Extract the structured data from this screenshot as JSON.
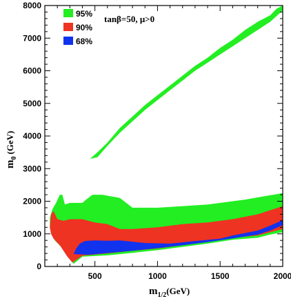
{
  "chart_data": {
    "type": "area",
    "title": "",
    "annotation": "tanβ=50, μ>0",
    "xlabel": {
      "main": "m",
      "sub": "1/2",
      "unit": "(GeV)"
    },
    "ylabel": {
      "main": "m",
      "sub": "0",
      "unit": "(GeV)"
    },
    "xlim": [
      100,
      2000
    ],
    "ylim": [
      0,
      8000
    ],
    "xticks": [
      500,
      1000,
      1500,
      2000
    ],
    "yticks": [
      0,
      1000,
      2000,
      3000,
      4000,
      5000,
      6000,
      7000,
      8000
    ],
    "legend": {
      "placement": "top-left",
      "entries": [
        {
          "label": "95%",
          "color": "#22ee22"
        },
        {
          "label": "90%",
          "color": "#ee3322"
        },
        {
          "label": "68%",
          "color": "#1133ee"
        }
      ]
    },
    "regions": [
      {
        "name": "95%",
        "color": "#22ee22",
        "polygons": [
          [
            [
              460,
              3300
            ],
            [
              520,
              3500
            ],
            [
              600,
              3800
            ],
            [
              700,
              4250
            ],
            [
              800,
              4600
            ],
            [
              900,
              4950
            ],
            [
              1000,
              5250
            ],
            [
              1100,
              5550
            ],
            [
              1200,
              5850
            ],
            [
              1300,
              6150
            ],
            [
              1400,
              6400
            ],
            [
              1500,
              6700
            ],
            [
              1600,
              6950
            ],
            [
              1700,
              7250
            ],
            [
              1800,
              7500
            ],
            [
              1900,
              7700
            ],
            [
              1950,
              7900
            ],
            [
              2000,
              8000
            ],
            [
              2000,
              7850
            ],
            [
              1900,
              7500
            ],
            [
              1800,
              7250
            ],
            [
              1700,
              7000
            ],
            [
              1600,
              6750
            ],
            [
              1500,
              6500
            ],
            [
              1400,
              6250
            ],
            [
              1300,
              6000
            ],
            [
              1200,
              5700
            ],
            [
              1100,
              5400
            ],
            [
              1000,
              5100
            ],
            [
              900,
              4800
            ],
            [
              800,
              4450
            ],
            [
              700,
              4100
            ],
            [
              600,
              3700
            ],
            [
              520,
              3350
            ]
          ],
          [
            [
              140,
              1500
            ],
            [
              160,
              1750
            ],
            [
              190,
              1950
            ],
            [
              220,
              2200
            ],
            [
              240,
              2200
            ],
            [
              260,
              1900
            ],
            [
              300,
              1950
            ],
            [
              400,
              1950
            ],
            [
              430,
              2050
            ],
            [
              480,
              2200
            ],
            [
              560,
              2200
            ],
            [
              700,
              2100
            ],
            [
              800,
              1800
            ],
            [
              1000,
              1800
            ],
            [
              1200,
              1850
            ],
            [
              1400,
              1900
            ],
            [
              1500,
              1950
            ],
            [
              1700,
              2050
            ],
            [
              1850,
              2150
            ],
            [
              2000,
              2250
            ],
            [
              2000,
              1050
            ],
            [
              1900,
              980
            ],
            [
              1800,
              880
            ],
            [
              1600,
              820
            ],
            [
              1400,
              700
            ],
            [
              1200,
              600
            ],
            [
              1000,
              500
            ],
            [
              800,
              420
            ],
            [
              600,
              340
            ],
            [
              400,
              300
            ],
            [
              330,
              80
            ],
            [
              300,
              250
            ],
            [
              230,
              600
            ],
            [
              180,
              800
            ],
            [
              150,
              1000
            ],
            [
              140,
              1200
            ]
          ]
        ]
      },
      {
        "name": "90%",
        "color": "#ee3322",
        "polygons": [
          [
            [
              140,
              1200
            ],
            [
              150,
              1600
            ],
            [
              170,
              1700
            ],
            [
              200,
              1450
            ],
            [
              250,
              1400
            ],
            [
              300,
              1450
            ],
            [
              400,
              1450
            ],
            [
              500,
              1350
            ],
            [
              600,
              1300
            ],
            [
              700,
              1150
            ],
            [
              800,
              1150
            ],
            [
              1000,
              1200
            ],
            [
              1200,
              1300
            ],
            [
              1400,
              1350
            ],
            [
              1600,
              1450
            ],
            [
              1800,
              1600
            ],
            [
              2000,
              1850
            ],
            [
              2000,
              1150
            ],
            [
              1900,
              1050
            ],
            [
              1800,
              950
            ],
            [
              1600,
              880
            ],
            [
              1400,
              750
            ],
            [
              1200,
              650
            ],
            [
              1000,
              550
            ],
            [
              800,
              480
            ],
            [
              600,
              400
            ],
            [
              400,
              330
            ],
            [
              320,
              120
            ],
            [
              280,
              300
            ],
            [
              220,
              650
            ],
            [
              170,
              850
            ],
            [
              150,
              1000
            ]
          ]
        ]
      },
      {
        "name": "68%",
        "color": "#1133ee",
        "polygons": [
          [
            [
              330,
              380
            ],
            [
              350,
              550
            ],
            [
              380,
              700
            ],
            [
              420,
              780
            ],
            [
              500,
              800
            ],
            [
              600,
              790
            ],
            [
              700,
              800
            ],
            [
              900,
              720
            ],
            [
              1100,
              700
            ],
            [
              1300,
              780
            ],
            [
              1500,
              850
            ],
            [
              1600,
              950
            ],
            [
              1800,
              1100
            ],
            [
              1900,
              1250
            ],
            [
              2000,
              1420
            ],
            [
              2000,
              1270
            ],
            [
              1900,
              1100
            ],
            [
              1800,
              980
            ],
            [
              1700,
              920
            ],
            [
              1600,
              860
            ],
            [
              1400,
              750
            ],
            [
              1200,
              650
            ],
            [
              1000,
              560
            ],
            [
              800,
              480
            ],
            [
              600,
              410
            ],
            [
              450,
              360
            ]
          ]
        ]
      }
    ]
  }
}
